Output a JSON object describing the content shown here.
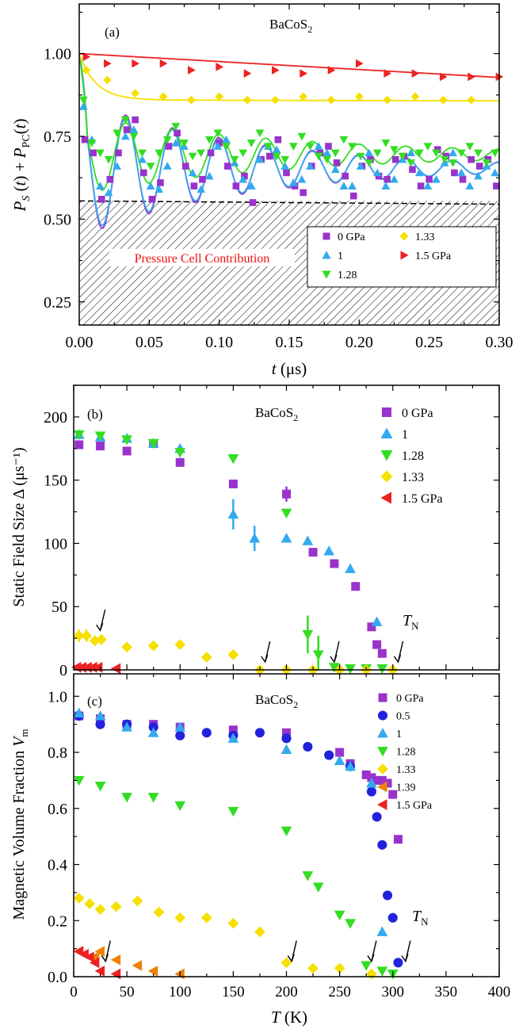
{
  "chart_data": [
    {
      "panel": "(a)",
      "type": "scatter",
      "compound": "BaCoS",
      "compound_sub": "2",
      "xlabel": "t (μs)",
      "ylabel": "P_S (t) + P_PC(t)",
      "xlim": [
        0,
        0.3
      ],
      "ylim": [
        0.18,
        1.15
      ],
      "xticks": [
        "0.00",
        "0.05",
        "0.10",
        "0.15",
        "0.20",
        "0.25",
        "0.30"
      ],
      "yticks": [
        "0.25",
        "0.50",
        "0.75",
        "1.00"
      ],
      "pc_level": 0.555,
      "pc_label": "Pressure Cell Contribution",
      "legend_position": "bottom-right",
      "series": [
        {
          "name": "0 GPa",
          "color": "#9933cc",
          "marker": "square",
          "fit_freq": 30,
          "fit_amp": 0.2,
          "fit_tau": 0.12,
          "x": [
            0.004,
            0.01,
            0.016,
            0.022,
            0.028,
            0.034,
            0.04,
            0.046,
            0.052,
            0.058,
            0.064,
            0.07,
            0.076,
            0.082,
            0.088,
            0.094,
            0.1,
            0.106,
            0.112,
            0.118,
            0.124,
            0.13,
            0.136,
            0.142,
            0.148,
            0.154,
            0.16,
            0.166,
            0.172,
            0.178,
            0.184,
            0.19,
            0.196,
            0.202,
            0.208,
            0.214,
            0.22,
            0.226,
            0.232,
            0.238,
            0.244,
            0.25,
            0.256,
            0.262,
            0.268,
            0.274,
            0.28,
            0.286,
            0.292,
            0.298
          ],
          "y": [
            0.74,
            0.7,
            0.56,
            0.62,
            0.7,
            0.77,
            0.8,
            0.64,
            0.56,
            0.61,
            0.72,
            0.76,
            0.66,
            0.6,
            0.62,
            0.7,
            0.73,
            0.66,
            0.6,
            0.63,
            0.55,
            0.68,
            0.69,
            0.74,
            0.64,
            0.6,
            0.58,
            0.66,
            0.7,
            0.72,
            0.67,
            0.63,
            0.57,
            0.66,
            0.68,
            0.63,
            0.62,
            0.68,
            0.69,
            0.65,
            0.6,
            0.62,
            0.71,
            0.69,
            0.64,
            0.62,
            0.68,
            0.66,
            0.68,
            0.6
          ]
        },
        {
          "name": "1",
          "color": "#33aaee",
          "marker": "triangle-up",
          "fit_freq": 30,
          "fit_amp": 0.2,
          "fit_tau": 0.12,
          "x": [
            0.003,
            0.009,
            0.015,
            0.021,
            0.027,
            0.033,
            0.039,
            0.045,
            0.051,
            0.057,
            0.063,
            0.069,
            0.075,
            0.081,
            0.087,
            0.093,
            0.099,
            0.105,
            0.111,
            0.117,
            0.123,
            0.129,
            0.135,
            0.141,
            0.147,
            0.153,
            0.159,
            0.165,
            0.171,
            0.177,
            0.183,
            0.189,
            0.195,
            0.201,
            0.207,
            0.213,
            0.219,
            0.225,
            0.231,
            0.237,
            0.243,
            0.249,
            0.255,
            0.261,
            0.267,
            0.273,
            0.279,
            0.285,
            0.291,
            0.297
          ],
          "y": [
            0.84,
            0.74,
            0.6,
            0.58,
            0.66,
            0.75,
            0.77,
            0.68,
            0.6,
            0.59,
            0.66,
            0.73,
            0.72,
            0.64,
            0.59,
            0.63,
            0.72,
            0.74,
            0.67,
            0.62,
            0.6,
            0.68,
            0.72,
            0.71,
            0.66,
            0.61,
            0.62,
            0.66,
            0.72,
            0.7,
            0.65,
            0.6,
            0.6,
            0.66,
            0.7,
            0.64,
            0.6,
            0.62,
            0.68,
            0.7,
            0.64,
            0.6,
            0.62,
            0.67,
            0.7,
            0.64,
            0.6,
            0.63,
            0.66,
            0.64
          ]
        },
        {
          "name": "1.28",
          "color": "#33dd22",
          "marker": "triangle-down",
          "fit_freq": 30,
          "fit_amp": 0.12,
          "fit_tau": 0.15,
          "x": [
            0.003,
            0.009,
            0.015,
            0.021,
            0.027,
            0.033,
            0.039,
            0.045,
            0.051,
            0.057,
            0.063,
            0.069,
            0.075,
            0.081,
            0.087,
            0.093,
            0.099,
            0.105,
            0.111,
            0.117,
            0.123,
            0.129,
            0.135,
            0.141,
            0.147,
            0.153,
            0.159,
            0.165,
            0.171,
            0.177,
            0.183,
            0.189,
            0.195,
            0.201,
            0.207,
            0.213,
            0.219,
            0.225,
            0.231,
            0.237,
            0.243,
            0.249,
            0.255,
            0.261,
            0.267,
            0.273,
            0.279,
            0.285,
            0.291,
            0.297
          ],
          "y": [
            0.86,
            0.73,
            0.7,
            0.68,
            0.76,
            0.8,
            0.75,
            0.7,
            0.66,
            0.7,
            0.74,
            0.78,
            0.73,
            0.69,
            0.7,
            0.74,
            0.76,
            0.72,
            0.68,
            0.7,
            0.73,
            0.76,
            0.72,
            0.69,
            0.68,
            0.72,
            0.75,
            0.72,
            0.69,
            0.68,
            0.7,
            0.74,
            0.72,
            0.69,
            0.67,
            0.7,
            0.73,
            0.71,
            0.69,
            0.67,
            0.7,
            0.72,
            0.7,
            0.68,
            0.67,
            0.7,
            0.72,
            0.7,
            0.67,
            0.7
          ]
        },
        {
          "name": "1.33",
          "color": "#f5e000",
          "marker": "diamond",
          "fit_amp": 0.14,
          "fit_tau": 0.012,
          "fit_base": 0.86,
          "x": [
            0.005,
            0.02,
            0.04,
            0.06,
            0.08,
            0.1,
            0.12,
            0.14,
            0.16,
            0.18,
            0.2,
            0.22,
            0.24,
            0.26,
            0.28
          ],
          "y": [
            0.95,
            0.92,
            0.88,
            0.87,
            0.86,
            0.87,
            0.86,
            0.86,
            0.87,
            0.86,
            0.87,
            0.86,
            0.87,
            0.86,
            0.86
          ]
        },
        {
          "name": "1.5 GPa",
          "color": "#ee2222",
          "marker": "triangle-right",
          "fit_start": 1.0,
          "fit_end": 0.928,
          "x": [
            0.005,
            0.02,
            0.04,
            0.06,
            0.08,
            0.1,
            0.12,
            0.14,
            0.16,
            0.18,
            0.2,
            0.22,
            0.24,
            0.26,
            0.28,
            0.3
          ],
          "y": [
            0.99,
            0.97,
            0.97,
            0.97,
            0.95,
            0.96,
            0.94,
            0.95,
            0.94,
            0.95,
            0.97,
            0.94,
            0.94,
            0.93,
            0.93,
            0.93
          ]
        }
      ]
    },
    {
      "panel": "(b)",
      "type": "scatter",
      "compound": "BaCoS",
      "compound_sub": "2",
      "xlabel": "T (K)",
      "ylabel": "Static Field Size Δ (μs⁻¹)",
      "xlim": [
        0,
        400
      ],
      "ylim": [
        0,
        225
      ],
      "yticks": [
        "0",
        "50",
        "100",
        "150",
        "200"
      ],
      "tn_label": "T_N",
      "arrows_x": [
        25,
        180,
        245,
        305
      ],
      "legend_position": "top-right",
      "series": [
        {
          "name": "0 GPa",
          "color": "#9933cc",
          "marker": "square",
          "x": [
            5,
            25,
            50,
            75,
            100,
            150,
            200,
            225,
            245,
            265,
            280,
            285,
            290
          ],
          "y": [
            178,
            177,
            173,
            179,
            164,
            147,
            139,
            93,
            84,
            66,
            34,
            20,
            13
          ],
          "err": [
            0,
            0,
            0,
            0,
            0,
            0,
            6,
            0,
            0,
            0,
            0,
            0,
            0
          ]
        },
        {
          "name": "1",
          "color": "#33aaee",
          "marker": "triangle-up",
          "x": [
            5,
            25,
            50,
            75,
            100,
            150,
            170,
            200,
            220,
            240,
            260,
            285
          ],
          "y": [
            186,
            184,
            183,
            179,
            175,
            123,
            104,
            104,
            102,
            94,
            80,
            38
          ],
          "err": [
            0,
            0,
            0,
            0,
            0,
            12,
            10,
            0,
            0,
            0,
            0,
            0
          ]
        },
        {
          "name": "1.28",
          "color": "#33dd22",
          "marker": "triangle-down",
          "x": [
            5,
            25,
            50,
            75,
            100,
            150,
            200,
            220,
            230,
            245,
            260,
            275,
            290
          ],
          "y": [
            186,
            185,
            182,
            179,
            172,
            167,
            124,
            28,
            12,
            2,
            1,
            1,
            1
          ],
          "err": [
            0,
            0,
            0,
            0,
            0,
            0,
            0,
            15,
            15,
            0,
            0,
            0,
            0
          ]
        },
        {
          "name": "1.33",
          "color": "#f5e000",
          "marker": "diamond",
          "x": [
            5,
            12,
            20,
            26,
            50,
            75,
            100,
            125,
            150,
            175,
            200,
            225,
            250,
            275,
            300
          ],
          "y": [
            27,
            27,
            23,
            24,
            18,
            19,
            20,
            10,
            12,
            0,
            0,
            0,
            0,
            0,
            0
          ],
          "err": [
            5,
            5,
            4,
            4,
            0,
            0,
            0,
            0,
            0,
            0,
            0,
            0,
            0,
            0,
            0
          ]
        },
        {
          "name": "1.5 GPa",
          "color": "#ee2222",
          "marker": "triangle-left",
          "x": [
            3,
            8,
            13,
            18,
            23,
            40
          ],
          "y": [
            2,
            2,
            2,
            2,
            2,
            1
          ],
          "err": [
            0,
            0,
            0,
            0,
            0,
            0
          ]
        }
      ]
    },
    {
      "panel": "(c)",
      "type": "scatter",
      "compound": "BaCoS",
      "compound_sub": "2",
      "xlabel": "T (K)",
      "ylabel": "Magnetic Volume Fraction V_m",
      "xlim": [
        0,
        400
      ],
      "ylim": [
        0,
        1.08
      ],
      "xticks": [
        "0",
        "50",
        "100",
        "150",
        "200",
        "250",
        "300",
        "350",
        "400"
      ],
      "yticks": [
        "0.0",
        "0.2",
        "0.4",
        "0.6",
        "0.8",
        "1.0"
      ],
      "tn_label": "T_N",
      "arrows_x": [
        30,
        205,
        280,
        312
      ],
      "legend_position": "top-right",
      "series": [
        {
          "name": "0 GPa",
          "color": "#9933cc",
          "marker": "square",
          "x": [
            5,
            25,
            50,
            75,
            100,
            150,
            200,
            250,
            260,
            275,
            280,
            285,
            290,
            295,
            300,
            305
          ],
          "y": [
            0.93,
            0.92,
            0.9,
            0.9,
            0.89,
            0.88,
            0.87,
            0.8,
            0.76,
            0.72,
            0.71,
            0.7,
            0.7,
            0.69,
            0.65,
            0.49
          ]
        },
        {
          "name": "0.5",
          "color": "#2222dd",
          "marker": "circle",
          "x": [
            5,
            25,
            50,
            75,
            100,
            125,
            150,
            175,
            200,
            220,
            240,
            260,
            280,
            285,
            290,
            295,
            300,
            305
          ],
          "y": [
            0.93,
            0.9,
            0.9,
            0.89,
            0.86,
            0.87,
            0.86,
            0.87,
            0.85,
            0.82,
            0.79,
            0.75,
            0.66,
            0.57,
            0.47,
            0.29,
            0.21,
            0.05
          ]
        },
        {
          "name": "1",
          "color": "#33aaee",
          "marker": "triangle-up",
          "x": [
            5,
            25,
            50,
            75,
            100,
            150,
            200,
            250,
            260,
            280,
            290
          ],
          "y": [
            0.94,
            0.93,
            0.89,
            0.87,
            0.89,
            0.85,
            0.81,
            0.77,
            0.75,
            0.69,
            0.16
          ]
        },
        {
          "name": "1.28",
          "color": "#33dd22",
          "marker": "triangle-down",
          "x": [
            5,
            25,
            50,
            75,
            100,
            150,
            200,
            220,
            230,
            250,
            260,
            275,
            290,
            300
          ],
          "y": [
            0.7,
            0.68,
            0.64,
            0.64,
            0.61,
            0.59,
            0.52,
            0.36,
            0.32,
            0.22,
            0.19,
            0.04,
            0.02,
            0.01
          ]
        },
        {
          "name": "1.33",
          "color": "#f5e000",
          "marker": "diamond",
          "x": [
            5,
            15,
            25,
            40,
            60,
            80,
            100,
            125,
            150,
            175,
            200,
            225,
            250,
            280
          ],
          "y": [
            0.28,
            0.26,
            0.24,
            0.25,
            0.27,
            0.23,
            0.21,
            0.21,
            0.19,
            0.16,
            0.05,
            0.03,
            0.03,
            0.01
          ]
        },
        {
          "name": "1.39",
          "color": "#f08000",
          "marker": "triangle-left",
          "x": [
            5,
            20,
            25,
            40,
            60,
            75,
            100
          ],
          "y": [
            0.09,
            0.07,
            0.09,
            0.06,
            0.04,
            0.02,
            0.01
          ]
        },
        {
          "name": "1.5 GPa",
          "color": "#ee2222",
          "marker": "triangle-left",
          "x": [
            5,
            10,
            15,
            20,
            25,
            40
          ],
          "y": [
            0.09,
            0.08,
            0.07,
            0.05,
            0.02,
            0.01
          ]
        }
      ]
    }
  ]
}
